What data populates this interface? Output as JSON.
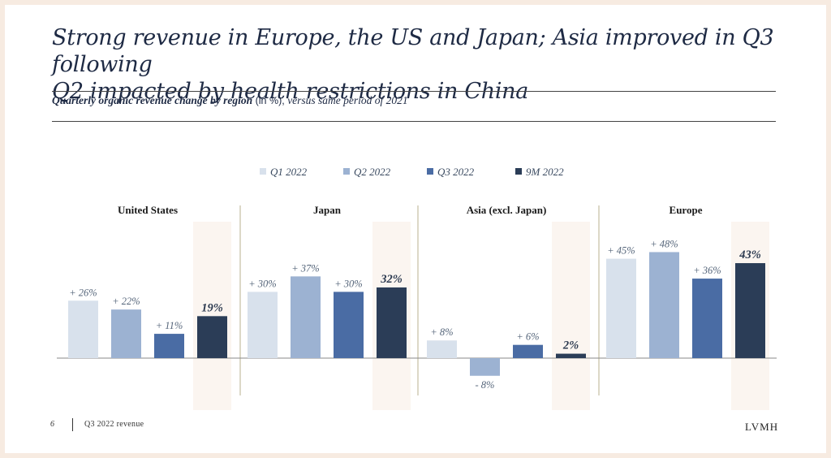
{
  "slide": {
    "title_line1": "Strong revenue in Europe, the US and Japan; Asia improved in Q3 following",
    "title_line2": "Q2 impacted by health restrictions in China",
    "subtitle_bold": "Quarterly organic revenue change by region",
    "subtitle_unit": " (in %), ",
    "subtitle_rest": "versus same period of 2021",
    "page_number": "6",
    "footer_text": "Q3 2022 revenue",
    "logo": "LVMH"
  },
  "colors": {
    "Q1 2022": "#d8e1ec",
    "Q2 2022": "#9cb2d2",
    "Q3 2022": "#4a6ca4",
    "9M 2022": "#2b3d57",
    "highlight_band": "#fbf5f0"
  },
  "chart_data": {
    "type": "bar",
    "legend": [
      "Q1 2022",
      "Q2 2022",
      "Q3 2022",
      "9M 2022"
    ],
    "legend_position": "top-center",
    "groups": [
      {
        "name": "United States",
        "values": [
          26,
          22,
          11,
          19
        ],
        "labels": [
          "+ 26%",
          "+ 22%",
          "+ 11%",
          "19%"
        ]
      },
      {
        "name": "Japan",
        "values": [
          30,
          37,
          30,
          32
        ],
        "labels": [
          "+ 30%",
          "+ 37%",
          "+ 30%",
          "32%"
        ]
      },
      {
        "name": "Asia (excl. Japan)",
        "values": [
          8,
          -8,
          6,
          2
        ],
        "labels": [
          "+ 8%",
          "- 8%",
          "+ 6%",
          "2%"
        ]
      },
      {
        "name": "Europe",
        "values": [
          45,
          48,
          36,
          43
        ],
        "labels": [
          "+ 45%",
          "+ 48%",
          "+ 36%",
          "43%"
        ]
      }
    ],
    "unit": "%"
  }
}
